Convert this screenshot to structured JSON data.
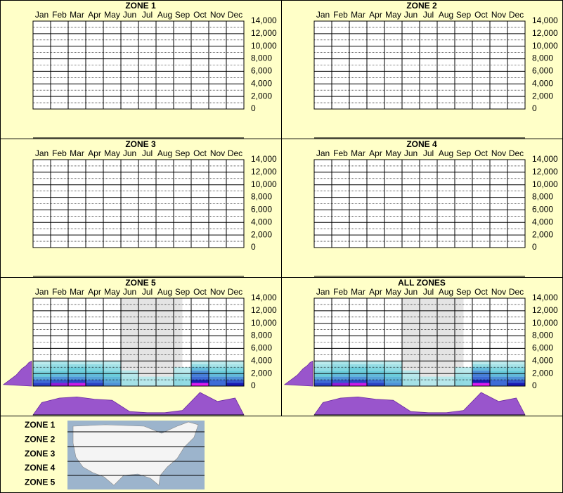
{
  "chart_data": [
    {
      "type": "heatmap",
      "title": "ZONE 1",
      "categories": [
        "Jan",
        "Feb",
        "Mar",
        "Apr",
        "May",
        "Jun",
        "Jul",
        "Aug",
        "Sep",
        "Oct",
        "Nov",
        "Dec"
      ],
      "ylim": [
        0,
        14000
      ],
      "yticks": [
        0,
        {
          "value": 2000,
          "label": "2,000"
        },
        {
          "value": 4000,
          "label": "4,000"
        },
        {
          "value": 6000,
          "label": "6,000"
        },
        {
          "value": 8000,
          "label": "8,000"
        },
        {
          "value": 10000,
          "label": "10,000"
        },
        {
          "value": 12000,
          "label": "12,000"
        },
        {
          "value": 14000,
          "label": "14,000"
        }
      ]
    },
    {
      "type": "heatmap",
      "title": "ZONE 2",
      "categories": [
        "Jan",
        "Feb",
        "Mar",
        "Apr",
        "May",
        "Jun",
        "Jul",
        "Aug",
        "Sep",
        "Oct",
        "Nov",
        "Dec"
      ],
      "ylim": [
        0,
        14000
      ],
      "yticks": [
        0,
        {
          "value": 2000,
          "label": "2,000"
        },
        {
          "value": 4000,
          "label": "4,000"
        },
        {
          "value": 6000,
          "label": "6,000"
        },
        {
          "value": 8000,
          "label": "8,000"
        },
        {
          "value": 10000,
          "label": "10,000"
        },
        {
          "value": 12000,
          "label": "12,000"
        },
        {
          "value": 14000,
          "label": "14,000"
        }
      ]
    },
    {
      "type": "heatmap",
      "title": "ZONE 3",
      "categories": [
        "Jan",
        "Feb",
        "Mar",
        "Apr",
        "May",
        "Jun",
        "Jul",
        "Aug",
        "Sep",
        "Oct",
        "Nov",
        "Dec"
      ],
      "ylim": [
        0,
        14000
      ],
      "yticks": [
        0,
        {
          "value": 2000,
          "label": "2,000"
        },
        {
          "value": 4000,
          "label": "4,000"
        },
        {
          "value": 6000,
          "label": "6,000"
        },
        {
          "value": 8000,
          "label": "8,000"
        },
        {
          "value": 10000,
          "label": "10,000"
        },
        {
          "value": 12000,
          "label": "12,000"
        },
        {
          "value": 14000,
          "label": "14,000"
        }
      ]
    },
    {
      "type": "heatmap",
      "title": "ZONE 4",
      "categories": [
        "Jan",
        "Feb",
        "Mar",
        "Apr",
        "May",
        "Jun",
        "Jul",
        "Aug",
        "Sep",
        "Oct",
        "Nov",
        "Dec"
      ],
      "ylim": [
        0,
        14000
      ],
      "yticks": [
        0,
        {
          "value": 2000,
          "label": "2,000"
        },
        {
          "value": 4000,
          "label": "4,000"
        },
        {
          "value": 6000,
          "label": "6,000"
        },
        {
          "value": 8000,
          "label": "8,000"
        },
        {
          "value": 10000,
          "label": "10,000"
        },
        {
          "value": 12000,
          "label": "12,000"
        },
        {
          "value": 14000,
          "label": "14,000"
        }
      ]
    },
    {
      "type": "heatmap",
      "title": "ZONE 5",
      "categories": [
        "Jan",
        "Feb",
        "Mar",
        "Apr",
        "May",
        "Jun",
        "Jul",
        "Aug",
        "Sep",
        "Oct",
        "Nov",
        "Dec"
      ],
      "ylim": [
        0,
        14000
      ],
      "yticks": [
        0,
        {
          "value": 2000,
          "label": "2,000"
        },
        {
          "value": 4000,
          "label": "4,000"
        },
        {
          "value": 6000,
          "label": "6,000"
        },
        {
          "value": 8000,
          "label": "8,000"
        },
        {
          "value": 10000,
          "label": "10,000"
        },
        {
          "value": 12000,
          "label": "12,000"
        },
        {
          "value": 14000,
          "label": "14,000"
        }
      ],
      "shade": [
        5,
        8.5
      ],
      "bins": [
        0,
        500,
        1000,
        1500,
        2000,
        2500,
        3000,
        3500,
        4000
      ],
      "z": [
        [
          0.6,
          0.8,
          0.85,
          0.6,
          0.4,
          0.1,
          0.05,
          0.05,
          0.15,
          0.9,
          0.5,
          0.7
        ],
        [
          0.5,
          0.55,
          0.6,
          0.5,
          0.35,
          0.1,
          0.05,
          0.05,
          0.15,
          0.7,
          0.5,
          0.55
        ],
        [
          0.35,
          0.4,
          0.4,
          0.35,
          0.3,
          0.08,
          0.05,
          0.05,
          0.15,
          0.5,
          0.4,
          0.4
        ],
        [
          0.25,
          0.3,
          0.3,
          0.3,
          0.25,
          0.05,
          0,
          0,
          0.1,
          0.45,
          0.3,
          0.3
        ],
        [
          0.2,
          0.25,
          0.25,
          0.25,
          0.2,
          0.05,
          0,
          0,
          0.05,
          0.4,
          0.25,
          0.25
        ],
        [
          0.15,
          0.2,
          0.25,
          0.2,
          0.15,
          0,
          0,
          0,
          0.05,
          0.3,
          0.2,
          0.2
        ],
        [
          0.1,
          0.15,
          0.15,
          0.15,
          0.1,
          0,
          0,
          0,
          0,
          0.15,
          0.1,
          0.1
        ],
        [
          0.05,
          0.1,
          0.05,
          0.05,
          0.05,
          0,
          0,
          0,
          0,
          0.05,
          0.05,
          0.05
        ]
      ],
      "month_profile": [
        0.55,
        0.75,
        0.8,
        0.7,
        0.65,
        0.15,
        0.1,
        0.1,
        0.2,
        1.0,
        0.6,
        0.75
      ],
      "elevation_profile": [
        1.0,
        0.85,
        0.7,
        0.55,
        0.45,
        0.35,
        0.2,
        0.1
      ]
    },
    {
      "type": "heatmap",
      "title": "ALL ZONES",
      "categories": [
        "Jan",
        "Feb",
        "Mar",
        "Apr",
        "May",
        "Jun",
        "Jul",
        "Aug",
        "Sep",
        "Oct",
        "Nov",
        "Dec"
      ],
      "ylim": [
        0,
        14000
      ],
      "yticks": [
        0,
        {
          "value": 2000,
          "label": "2,000"
        },
        {
          "value": 4000,
          "label": "4,000"
        },
        {
          "value": 6000,
          "label": "6,000"
        },
        {
          "value": 8000,
          "label": "8,000"
        },
        {
          "value": 10000,
          "label": "10,000"
        },
        {
          "value": 12000,
          "label": "12,000"
        },
        {
          "value": 14000,
          "label": "14,000"
        }
      ],
      "shade": [
        5,
        8.5
      ],
      "bins": [
        0,
        500,
        1000,
        1500,
        2000,
        2500,
        3000,
        3500,
        4000
      ],
      "z": [
        [
          0.6,
          0.8,
          0.85,
          0.6,
          0.4,
          0.1,
          0.05,
          0.05,
          0.15,
          0.9,
          0.5,
          0.7
        ],
        [
          0.5,
          0.55,
          0.6,
          0.5,
          0.35,
          0.1,
          0.05,
          0.05,
          0.15,
          0.7,
          0.5,
          0.55
        ],
        [
          0.35,
          0.4,
          0.4,
          0.35,
          0.3,
          0.08,
          0.05,
          0.05,
          0.15,
          0.5,
          0.4,
          0.4
        ],
        [
          0.25,
          0.3,
          0.3,
          0.3,
          0.25,
          0.05,
          0,
          0,
          0.1,
          0.45,
          0.3,
          0.3
        ],
        [
          0.2,
          0.25,
          0.25,
          0.25,
          0.2,
          0.05,
          0,
          0,
          0.05,
          0.4,
          0.25,
          0.25
        ],
        [
          0.15,
          0.2,
          0.25,
          0.2,
          0.15,
          0,
          0,
          0,
          0.05,
          0.3,
          0.2,
          0.2
        ],
        [
          0.1,
          0.15,
          0.15,
          0.15,
          0.1,
          0,
          0,
          0,
          0,
          0.15,
          0.1,
          0.1
        ],
        [
          0.05,
          0.1,
          0.05,
          0.05,
          0.05,
          0,
          0,
          0,
          0,
          0.05,
          0.05,
          0.05
        ]
      ],
      "month_profile": [
        0.55,
        0.75,
        0.8,
        0.7,
        0.65,
        0.15,
        0.1,
        0.1,
        0.2,
        1.0,
        0.6,
        0.75
      ],
      "elevation_profile": [
        1.0,
        0.85,
        0.7,
        0.55,
        0.45,
        0.35,
        0.2,
        0.1
      ]
    }
  ],
  "legend": {
    "zones": [
      "ZONE 1",
      "ZONE 2",
      "ZONE 3",
      "ZONE 4",
      "ZONE 5"
    ]
  }
}
